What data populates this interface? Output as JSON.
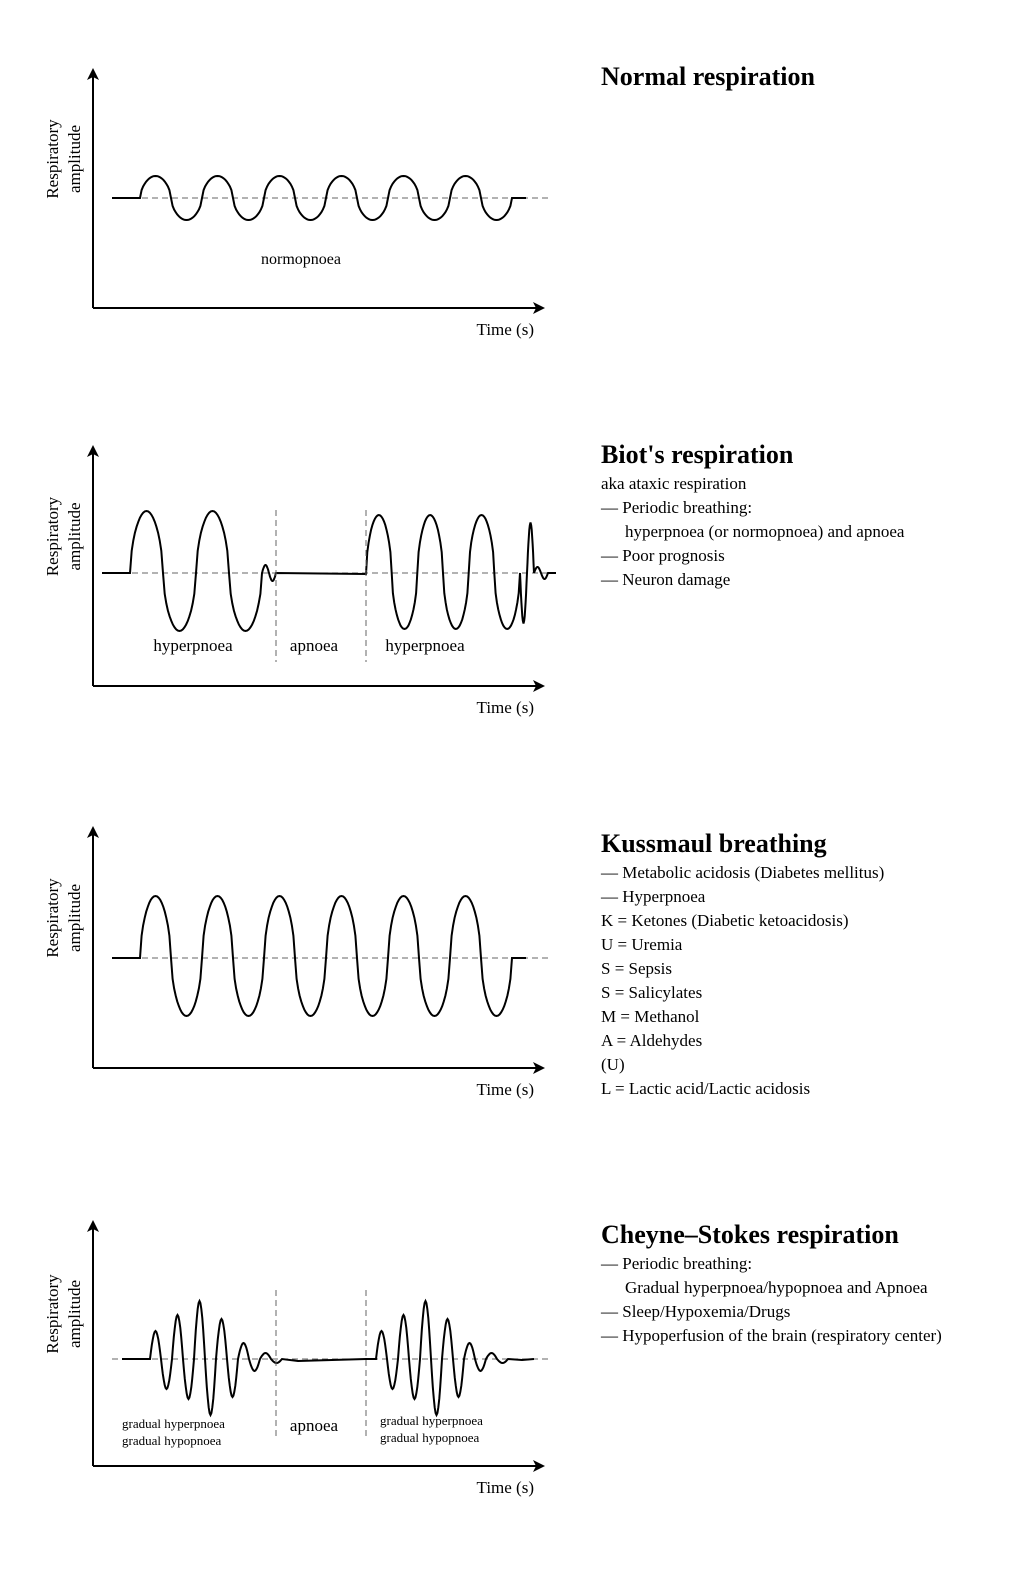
{
  "axes": {
    "ylabel_line1": "Respiratory",
    "ylabel_line2": "amplitude",
    "xlabel": "Time (s)"
  },
  "panels": [
    {
      "id": "normal",
      "title": "Normal respiration",
      "lines": [],
      "segment_labels": [
        {
          "lines": [
            "normopnoea"
          ]
        }
      ],
      "waveform": {
        "pattern": "normopnoea",
        "cycles": 6,
        "amplitude": "small"
      }
    },
    {
      "id": "biot",
      "title": "Biot's respiration",
      "lines": [
        {
          "text": "aka ataxic respiration",
          "indent": false
        },
        {
          "text": "— Periodic breathing:",
          "indent": false
        },
        {
          "text": "hyperpnoea (or normopnoea) and apnoea",
          "indent": true
        },
        {
          "text": "— Poor prognosis",
          "indent": false
        },
        {
          "text": "— Neuron damage",
          "indent": false
        }
      ],
      "segment_labels": [
        {
          "lines": [
            "hyperpnoea"
          ]
        },
        {
          "lines": [
            "apnoea"
          ]
        },
        {
          "lines": [
            "hyperpnoea"
          ]
        }
      ],
      "waveform": {
        "pattern": "hyperpnoea-apnoea-hyperpnoea",
        "amplitude": "large"
      }
    },
    {
      "id": "kussmaul",
      "title": "Kussmaul breathing",
      "lines": [
        {
          "text": "— Metabolic acidosis (Diabetes mellitus)",
          "indent": false
        },
        {
          "text": "— Hyperpnoea",
          "indent": false
        },
        {
          "text": "K = Ketones (Diabetic ketoacidosis)",
          "indent": false
        },
        {
          "text": "U = Uremia",
          "indent": false
        },
        {
          "text": "S = Sepsis",
          "indent": false
        },
        {
          "text": "S = Salicylates",
          "indent": false
        },
        {
          "text": "M = Methanol",
          "indent": false
        },
        {
          "text": "A = Aldehydes",
          "indent": false
        },
        {
          "text": "(U)",
          "indent": false
        },
        {
          "text": "L = Lactic acid/Lactic acidosis",
          "indent": false
        }
      ],
      "segment_labels": [],
      "waveform": {
        "pattern": "hyperpnoea",
        "cycles": 6,
        "amplitude": "large"
      }
    },
    {
      "id": "cheyne-stokes",
      "title": "Cheyne–Stokes respiration",
      "lines": [
        {
          "text": "— Periodic breathing:",
          "indent": false
        },
        {
          "text": "Gradual hyperpnoea/hypopnoea and Apnoea",
          "indent": true
        },
        {
          "text": "— Sleep/Hypoxemia/Drugs",
          "indent": false
        },
        {
          "text": "— Hypoperfusion of the brain (respiratory center)",
          "indent": false
        }
      ],
      "segment_labels": [
        {
          "lines": [
            "gradual hyperpnoea",
            "gradual hypopnoea"
          ]
        },
        {
          "lines": [
            "apnoea"
          ]
        },
        {
          "lines": [
            "gradual hyperpnoea",
            "gradual hypopnoea"
          ]
        }
      ],
      "waveform": {
        "pattern": "crescendo-decrescendo-apnoea",
        "amplitude": "varying"
      }
    }
  ]
}
